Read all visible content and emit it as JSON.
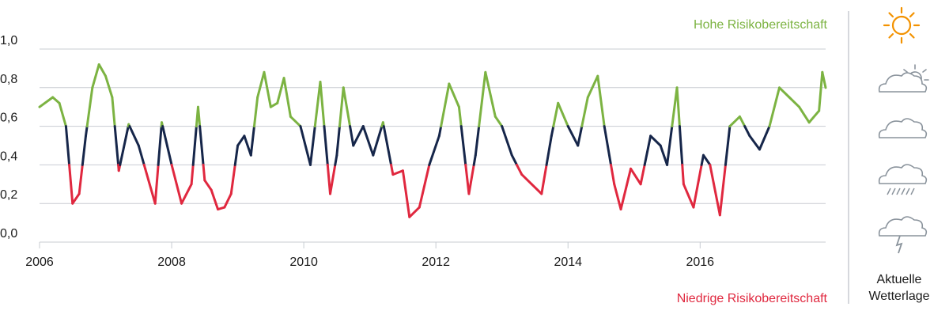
{
  "chart_data": {
    "type": "line",
    "high_label": "Hohe Risikobereitschaft",
    "low_label": "Niedrige Risikobereitschaft",
    "legend_title": [
      "Aktuelle",
      "Wetterlage"
    ],
    "y_ticks": [
      "0,0",
      "0,2",
      "0,4",
      "0,6",
      "0,8",
      "1,0"
    ],
    "y_tick_values": [
      0,
      0.2,
      0.4,
      0.6,
      0.8,
      1.0
    ],
    "x_ticks": [
      "2006",
      "2008",
      "2010",
      "2012",
      "2014",
      "2016"
    ],
    "x_tick_values": [
      2006,
      2008,
      2010,
      2012,
      2014,
      2016
    ],
    "xlim": [
      2006,
      2017.9
    ],
    "ylim": [
      0,
      1.0
    ],
    "thresholds": {
      "low": 0.4,
      "high": 0.6
    },
    "colors": {
      "high": "#7cb342",
      "mid": "#16264a",
      "low": "#e0283f",
      "grid": "#c8ccd2",
      "sun": "#f39200",
      "cloud": "#8a939c"
    },
    "weather_icons": [
      "sun-icon",
      "sun-behind-cloud-icon",
      "cloud-icon",
      "rain-cloud-icon",
      "thunder-cloud-icon"
    ],
    "series": [
      {
        "x": [
          2006.0,
          2006.2,
          2006.3,
          2006.4,
          2006.45,
          2006.5,
          2006.6,
          2006.7,
          2006.8,
          2006.9,
          2007.0,
          2007.1,
          2007.2,
          2007.35,
          2007.5,
          2007.6,
          2007.75,
          2007.85,
          2008.0,
          2008.15,
          2008.3,
          2008.4,
          2008.5,
          2008.6,
          2008.7,
          2008.8,
          2008.9,
          2009.0,
          2009.1,
          2009.2,
          2009.3,
          2009.4,
          2009.5,
          2009.6,
          2009.7,
          2009.8,
          2009.95,
          2010.1,
          2010.25,
          2010.4,
          2010.5,
          2010.6,
          2010.75,
          2010.9,
          2011.05,
          2011.2,
          2011.35,
          2011.5,
          2011.6,
          2011.75,
          2011.9,
          2012.05,
          2012.2,
          2012.35,
          2012.5,
          2012.6,
          2012.75,
          2012.9,
          2013.0,
          2013.15,
          2013.3,
          2013.45,
          2013.6,
          2013.75,
          2013.85,
          2014.0,
          2014.15,
          2014.3,
          2014.45,
          2014.55,
          2014.7,
          2014.8,
          2014.95,
          2015.1,
          2015.25,
          2015.4,
          2015.5,
          2015.65,
          2015.75,
          2015.9,
          2016.05,
          2016.15,
          2016.3,
          2016.45,
          2016.6,
          2016.75,
          2016.9,
          2017.05,
          2017.2,
          2017.35,
          2017.5,
          2017.65,
          2017.8,
          2017.85,
          2017.9
        ],
        "y": [
          0.7,
          0.75,
          0.72,
          0.6,
          0.4,
          0.2,
          0.25,
          0.55,
          0.8,
          0.92,
          0.86,
          0.75,
          0.37,
          0.61,
          0.5,
          0.38,
          0.2,
          0.62,
          0.4,
          0.2,
          0.3,
          0.7,
          0.32,
          0.27,
          0.17,
          0.18,
          0.25,
          0.5,
          0.55,
          0.45,
          0.75,
          0.88,
          0.7,
          0.72,
          0.85,
          0.65,
          0.6,
          0.4,
          0.83,
          0.25,
          0.45,
          0.8,
          0.5,
          0.6,
          0.45,
          0.62,
          0.35,
          0.37,
          0.13,
          0.18,
          0.4,
          0.55,
          0.82,
          0.7,
          0.25,
          0.45,
          0.88,
          0.65,
          0.6,
          0.45,
          0.35,
          0.3,
          0.25,
          0.55,
          0.72,
          0.6,
          0.5,
          0.75,
          0.86,
          0.6,
          0.3,
          0.17,
          0.38,
          0.3,
          0.55,
          0.5,
          0.4,
          0.8,
          0.3,
          0.18,
          0.45,
          0.4,
          0.14,
          0.6,
          0.65,
          0.55,
          0.48,
          0.6,
          0.8,
          0.75,
          0.7,
          0.62,
          0.68,
          0.88,
          0.8
        ]
      }
    ]
  }
}
